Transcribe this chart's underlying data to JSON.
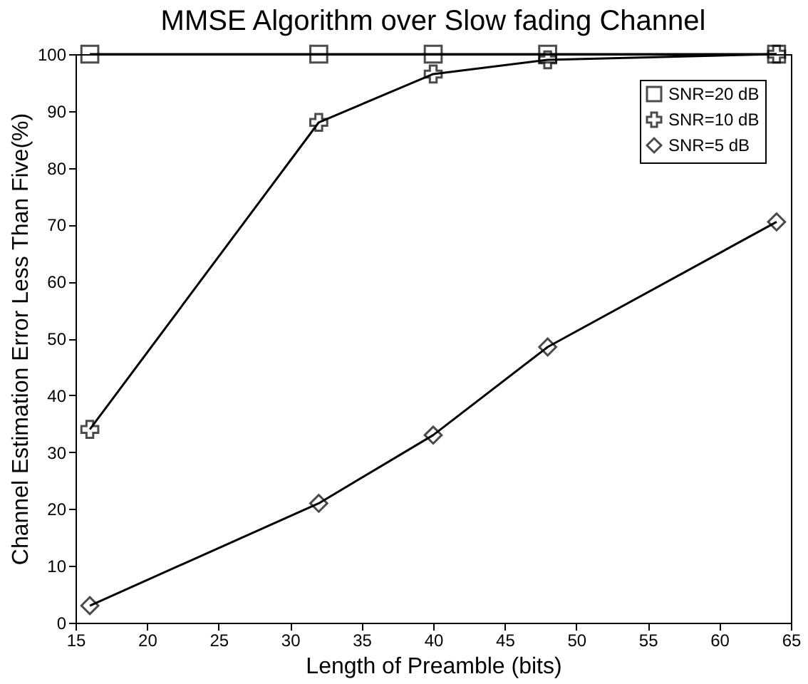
{
  "chart_data": {
    "type": "line",
    "title": "MMSE Algorithm over Slow fading Channel",
    "xlabel": "Length of Preamble   (bits)",
    "ylabel": "Channel Estimation Error Less Than Five(%)",
    "x": [
      16,
      32,
      40,
      48,
      64
    ],
    "series": [
      {
        "name": "SNR=20 dB",
        "color": "#000000",
        "marker": "square",
        "values": [
          100,
          100,
          100,
          100,
          100
        ]
      },
      {
        "name": "SNR=10 dB",
        "color": "#000000",
        "marker": "cross",
        "values": [
          34,
          88,
          96.5,
          99,
          100
        ]
      },
      {
        "name": "SNR=5 dB",
        "color": "#000000",
        "marker": "diamond",
        "values": [
          3,
          21,
          33,
          48.5,
          70.5
        ]
      }
    ],
    "xlim": [
      15,
      65
    ],
    "xticks": [
      15,
      20,
      25,
      30,
      35,
      40,
      45,
      50,
      55,
      60,
      65
    ],
    "ylim": [
      0,
      100
    ],
    "yticks": [
      0,
      10,
      20,
      30,
      40,
      50,
      60,
      70,
      80,
      90,
      100
    ],
    "grid": false,
    "legend": "top right",
    "line_style": "solid"
  }
}
